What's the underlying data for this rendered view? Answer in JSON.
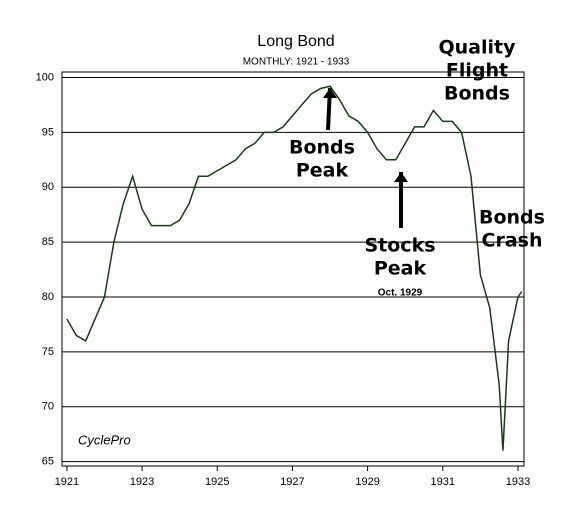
{
  "chart_data": {
    "type": "line",
    "title": "Long Bond",
    "subtitle": "MONTHLY: 1921 - 1933",
    "x": [
      1921.0,
      1921.25,
      1921.5,
      1921.75,
      1922.0,
      1922.25,
      1922.5,
      1922.75,
      1923.0,
      1923.25,
      1923.5,
      1923.75,
      1924.0,
      1924.25,
      1924.5,
      1924.75,
      1925.0,
      1925.25,
      1925.5,
      1925.75,
      1926.0,
      1926.25,
      1926.5,
      1926.75,
      1927.0,
      1927.25,
      1927.5,
      1927.75,
      1928.0,
      1928.25,
      1928.5,
      1928.75,
      1929.0,
      1929.25,
      1929.5,
      1929.75,
      1930.0,
      1930.25,
      1930.5,
      1930.75,
      1931.0,
      1931.25,
      1931.5,
      1931.75,
      1932.0,
      1932.25,
      1932.5,
      1932.6,
      1932.75,
      1933.0,
      1933.1
    ],
    "series": [
      {
        "name": "Long Bond",
        "color": "#1a3a1a",
        "values": [
          78,
          76.5,
          76,
          78,
          80,
          85,
          88.5,
          91,
          88,
          86.5,
          86.5,
          86.5,
          87,
          88.5,
          91,
          91,
          91.5,
          92,
          92.5,
          93.5,
          94,
          95,
          95,
          95.5,
          96.5,
          97.5,
          98.5,
          99,
          99.2,
          98,
          96.5,
          96,
          95,
          93.5,
          92.5,
          92.5,
          94,
          95.5,
          95.5,
          97,
          96,
          96,
          95,
          91,
          82,
          79,
          72,
          66,
          76,
          80,
          80.5
        ]
      }
    ],
    "xlim": [
      1920.87,
      1933.16
    ],
    "xticks": [
      1921,
      1923,
      1925,
      1927,
      1929,
      1931,
      1933
    ],
    "ylim": [
      64.6,
      100.5
    ],
    "yticks": [
      65,
      70,
      75,
      80,
      85,
      90,
      95,
      100
    ],
    "grid": true,
    "annotations": [
      {
        "lines": [
          "Bonds",
          "Peak"
        ]
      },
      {
        "lines": [
          "Stocks",
          "Peak"
        ]
      },
      {
        "lines": [
          "Oct. 1929"
        ]
      },
      {
        "lines": [
          "Quality",
          "Flight",
          "Bonds"
        ]
      },
      {
        "lines": [
          "Bonds",
          "Crash"
        ]
      },
      {
        "lines": [
          "CyclePro"
        ]
      }
    ]
  }
}
